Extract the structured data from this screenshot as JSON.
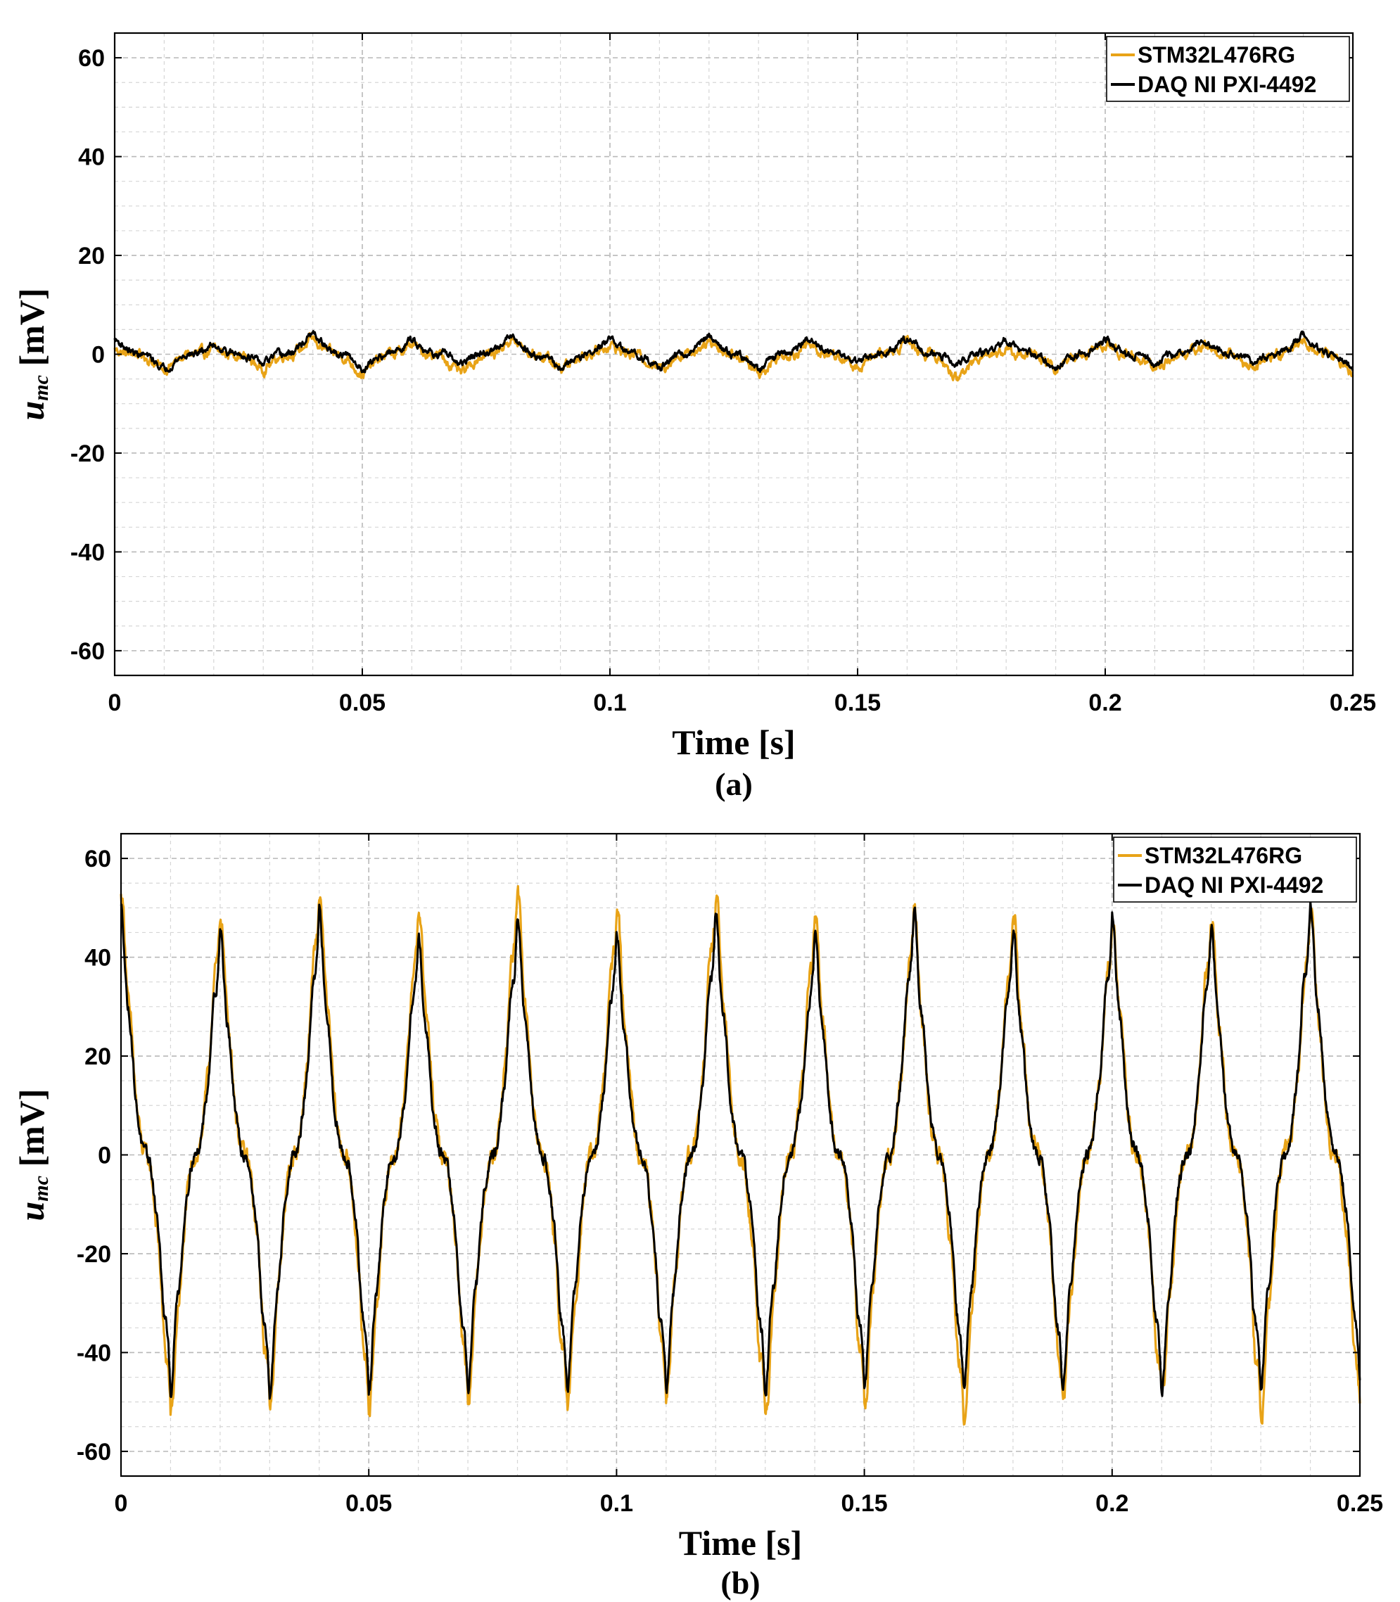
{
  "colors": {
    "series1": "#E8A317",
    "series2": "#000000"
  },
  "chart_data": [
    {
      "type": "line",
      "panel_label": "(a)",
      "xlabel": "Time [s]",
      "ylabel_main": "u",
      "ylabel_sub": "mc",
      "ylabel_unit": " [mV]",
      "xlim": [
        0,
        0.25
      ],
      "ylim": [
        -65,
        65
      ],
      "x_ticks": [
        0,
        0.05,
        0.1,
        0.15,
        0.2,
        0.25
      ],
      "x_tick_labels": [
        "0",
        "0.05",
        "0.1",
        "0.15",
        "0.2",
        "0.25"
      ],
      "y_ticks": [
        60,
        40,
        20,
        0,
        -20,
        -40,
        -60
      ],
      "y_tick_labels": [
        "60",
        "40",
        "20",
        "0",
        "-20",
        "-40",
        "-60"
      ],
      "grid": "on (major and minor, dashed)",
      "legend": "top-right",
      "signal_frequency_hz": 50,
      "series": [
        {
          "name": "STM32L476RG",
          "x": [
            0,
            0.01,
            0.02,
            0.03,
            0.04,
            0.05,
            0.06,
            0.07,
            0.08,
            0.09,
            0.1,
            0.11,
            0.12,
            0.13,
            0.14,
            0.15,
            0.16,
            0.17,
            0.18,
            0.19,
            0.2,
            0.21,
            0.22,
            0.23,
            0.24,
            0.25
          ],
          "values": [
            1,
            -3,
            1,
            -3,
            3,
            -4,
            2,
            -4,
            3,
            -3,
            2,
            -3,
            3,
            -4,
            2,
            -3,
            3,
            -5,
            1,
            -3,
            2,
            -3,
            2,
            -3,
            3,
            -4
          ]
        },
        {
          "name": "DAQ NI PXI-4492",
          "x": [
            0,
            0.01,
            0.02,
            0.03,
            0.04,
            0.05,
            0.06,
            0.07,
            0.08,
            0.09,
            0.1,
            0.11,
            0.12,
            0.13,
            0.14,
            0.15,
            0.16,
            0.17,
            0.18,
            0.19,
            0.2,
            0.21,
            0.22,
            0.23,
            0.24,
            0.25
          ],
          "values": [
            3,
            -3,
            2,
            -2,
            4,
            -3,
            3,
            -2,
            4,
            -3,
            3,
            -3,
            4,
            -3,
            3,
            -2,
            3,
            -2,
            3,
            -3,
            3,
            -2,
            3,
            -2,
            4,
            -3
          ]
        }
      ]
    },
    {
      "type": "line",
      "panel_label": "(b)",
      "xlabel": "Time [s]",
      "ylabel_main": "u",
      "ylabel_sub": "mc",
      "ylabel_unit": " [mV]",
      "xlim": [
        0,
        0.25
      ],
      "ylim": [
        -65,
        65
      ],
      "x_ticks": [
        0,
        0.05,
        0.1,
        0.15,
        0.2,
        0.25
      ],
      "x_tick_labels": [
        "0",
        "0.05",
        "0.1",
        "0.15",
        "0.2",
        "0.25"
      ],
      "y_ticks": [
        60,
        40,
        20,
        0,
        -20,
        -40,
        -60
      ],
      "y_tick_labels": [
        "60",
        "40",
        "20",
        "0",
        "-20",
        "-40",
        "-60"
      ],
      "grid": "on (major and minor, dashed)",
      "legend": "top-right",
      "signal_frequency_hz": 50,
      "series": [
        {
          "name": "STM32L476RG",
          "x": [
            0,
            0.01,
            0.02,
            0.03,
            0.04,
            0.05,
            0.06,
            0.07,
            0.08,
            0.09,
            0.1,
            0.11,
            0.12,
            0.13,
            0.14,
            0.15,
            0.16,
            0.17,
            0.18,
            0.19,
            0.2,
            0.21,
            0.22,
            0.23,
            0.24,
            0.25
          ],
          "values": [
            52,
            -52,
            48,
            -50,
            52,
            -51,
            49,
            -49,
            52,
            -51,
            49,
            -49,
            52,
            -53,
            48,
            -50,
            49,
            -53,
            48,
            -50,
            48,
            -50,
            47,
            -52,
            50,
            -52
          ]
        },
        {
          "name": "DAQ NI PXI-4492",
          "x": [
            0,
            0.01,
            0.02,
            0.03,
            0.04,
            0.05,
            0.06,
            0.07,
            0.08,
            0.09,
            0.1,
            0.11,
            0.12,
            0.13,
            0.14,
            0.15,
            0.16,
            0.17,
            0.18,
            0.19,
            0.2,
            0.21,
            0.22,
            0.23,
            0.24,
            0.25
          ],
          "values": [
            48,
            -46,
            44,
            -47,
            47,
            -46,
            43,
            -46,
            46,
            -46,
            43,
            -46,
            47,
            -46,
            43,
            -45,
            48,
            -46,
            44,
            -46,
            47,
            -46,
            44,
            -46,
            49,
            -44
          ]
        }
      ]
    }
  ]
}
